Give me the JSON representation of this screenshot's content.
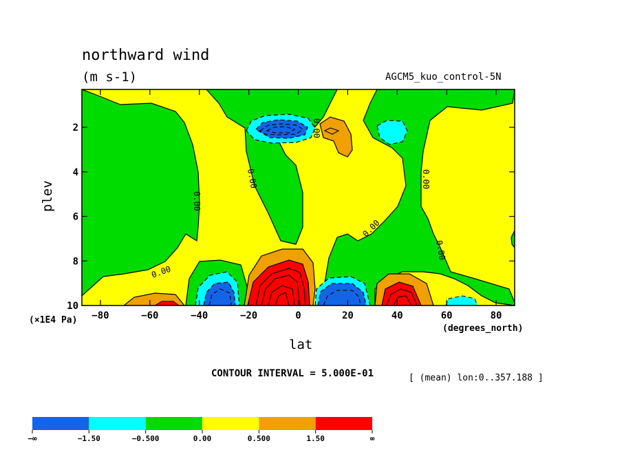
{
  "chart_data": {
    "type": "contour",
    "title": "northward wind",
    "units": "(m s-1)",
    "run_label": "AGCM5_kuo_control-5N",
    "xlabel": "lat",
    "ylabel": "plev",
    "x_unit": "(degrees_north)",
    "y_unit": "(×1E4 Pa)",
    "xlim": [
      -87.5,
      87.5
    ],
    "ylim": [
      10,
      0.3
    ],
    "x_ticks": [
      -80,
      -60,
      -40,
      -20,
      0,
      20,
      40,
      60,
      80
    ],
    "x_tick_labels": [
      "−80",
      "−60",
      "−40",
      "−20",
      "0",
      "20",
      "40",
      "60",
      "80"
    ],
    "y_ticks": [
      2,
      4,
      6,
      8,
      10
    ],
    "y_tick_labels": [
      "2",
      "4",
      "6",
      "8",
      "10"
    ],
    "contour_interval_text": "CONTOUR INTERVAL = 5.000E-01",
    "mean_text": "[ (mean) lon:0..357.188 ]",
    "contour_label": "0.00",
    "colorbar": {
      "levels": [
        "−∞",
        "−1.50",
        "−0.500",
        "0.00",
        "0.500",
        "1.50",
        "∞"
      ],
      "colors": [
        "#1464e6",
        "#00ffff",
        "#00dc00",
        "#ffff00",
        "#f0a000",
        "#ff0000"
      ]
    },
    "extrema": [
      {
        "lat": -3,
        "plev": 2.0,
        "sign": "negative",
        "note": "upper-level minimum"
      },
      {
        "lat": -7,
        "plev": 9.5,
        "sign": "positive",
        "note": "strongest maximum"
      },
      {
        "lat": 43,
        "plev": 9.7,
        "sign": "positive"
      },
      {
        "lat": -33,
        "plev": 9.6,
        "sign": "negative"
      },
      {
        "lat": 17,
        "plev": 9.5,
        "sign": "negative"
      }
    ]
  }
}
